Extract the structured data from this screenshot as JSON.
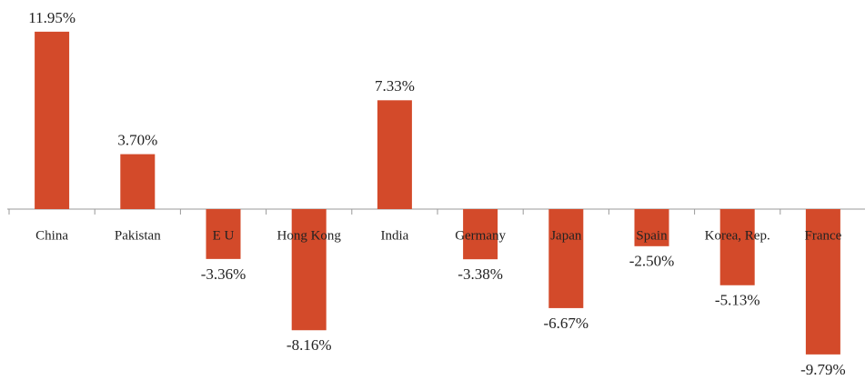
{
  "chart_data": {
    "type": "bar",
    "categories": [
      "China",
      "Pakistan",
      "E U",
      "Hong Kong",
      "India",
      "Germany",
      "Japan",
      "Spain",
      "Korea, Rep.",
      "France"
    ],
    "values": [
      11.95,
      3.7,
      -3.36,
      -8.16,
      7.33,
      -3.38,
      -6.67,
      -2.5,
      -5.13,
      -9.79
    ],
    "value_labels": [
      "11.95%",
      "3.70%",
      "-3.36%",
      "-8.16%",
      "7.33%",
      "-3.38%",
      "-6.67%",
      "-2.50%",
      "-5.13%",
      "-9.79%"
    ],
    "color": "#d34a2a"
  }
}
